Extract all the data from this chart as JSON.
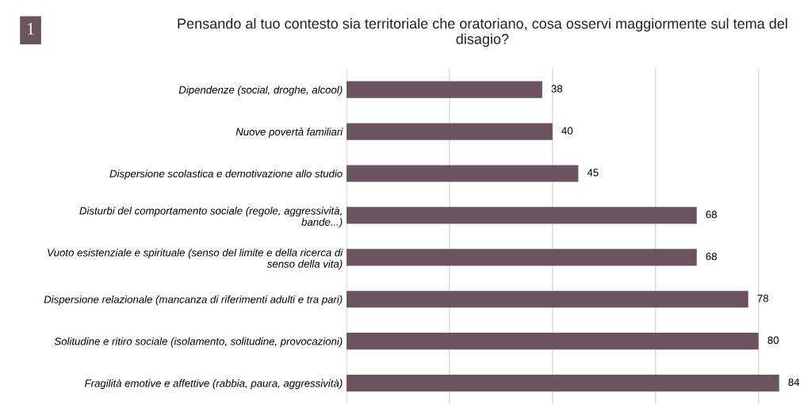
{
  "chart_data": {
    "type": "bar",
    "orientation": "horizontal",
    "title": "Pensando al tuo contesto sia territoriale che oratoriano, cosa osservi maggiormente sul tema del disagio?",
    "categories": [
      "Dipendenze (social, droghe, alcool)",
      "Nuove povertà familiari",
      "Dispersione scolastica e demotivazione allo studio",
      "Disturbi del comportamento sociale (regole, aggressività,\nbande...)",
      "Vuoto esistenziale e spirituale (senso del limite e della ricerca di\nsenso della vita)",
      "Dispersione relazionale (mancanza di riferimenti adulti e tra pari)",
      "Solitudine e ritiro sociale (isolamento, solitudine, provocazioni)",
      "Fragilità emotive e affettive (rabbia, paura, aggressività)"
    ],
    "values": [
      38,
      40,
      45,
      68,
      68,
      78,
      80,
      84
    ],
    "color": "#6b535f",
    "data_labels": true,
    "xticks": [
      {
        "value": 0,
        "label": null
      },
      {
        "value": 20,
        "label": null
      },
      {
        "value": 40,
        "label": null
      },
      {
        "value": 60,
        "label": null
      },
      {
        "value": 80,
        "label": null
      }
    ],
    "tick_labels": "y",
    "grid": "x",
    "annotations": [
      "1"
    ]
  }
}
